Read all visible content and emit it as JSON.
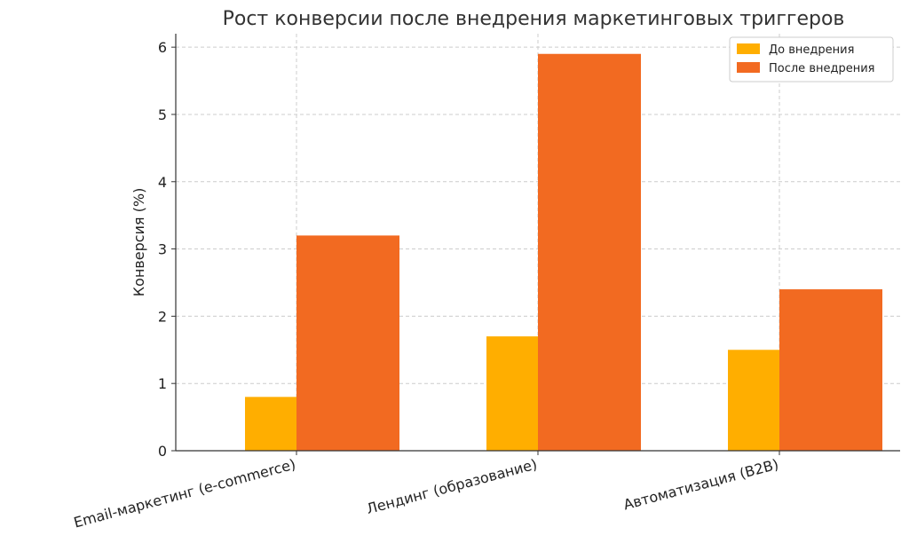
{
  "chart_data": {
    "type": "bar",
    "title": "Рост конверсии после внедрения маркетинговых триггеров",
    "xlabel": "",
    "ylabel": "Конверсия (%)",
    "categories": [
      "Email-маркетинг (e-commerce)",
      "Лендинг (образование)",
      "Автоматизация (B2B)"
    ],
    "series": [
      {
        "name": "До внедрения",
        "values": [
          0.8,
          1.7,
          1.5
        ],
        "color": "#FFAE00"
      },
      {
        "name": "После внедрения",
        "values": [
          3.2,
          5.9,
          2.4
        ],
        "color": "#F26A21"
      }
    ],
    "ylim": [
      0,
      6.2
    ],
    "yticks": [
      "0",
      "1",
      "2",
      "3",
      "4",
      "5",
      "6"
    ],
    "grid": true,
    "legend_position": "top-right"
  }
}
